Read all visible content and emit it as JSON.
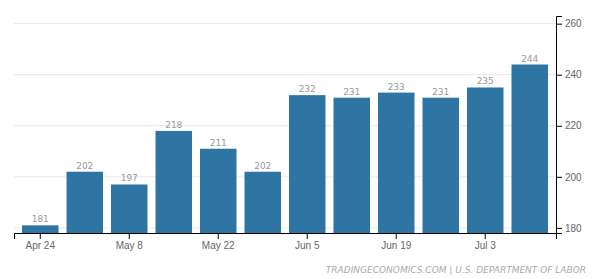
{
  "chart_data": {
    "type": "bar",
    "categories": [
      "Apr 24",
      null,
      "May 8",
      null,
      "May 22",
      null,
      "Jun 5",
      null,
      "Jun 19",
      null,
      "Jul 3",
      null
    ],
    "values": [
      181,
      202,
      197,
      218,
      211,
      202,
      232,
      231,
      233,
      231,
      235,
      244
    ],
    "color": "#2e75a3",
    "ylim": [
      178,
      263
    ],
    "yticks": [
      180,
      200,
      220,
      240,
      260
    ],
    "grid": true,
    "data_labels": true,
    "annotations": [
      "TRADINGECONOMICS.COM | U.S. DEPARTMENT OF LABOR"
    ]
  }
}
